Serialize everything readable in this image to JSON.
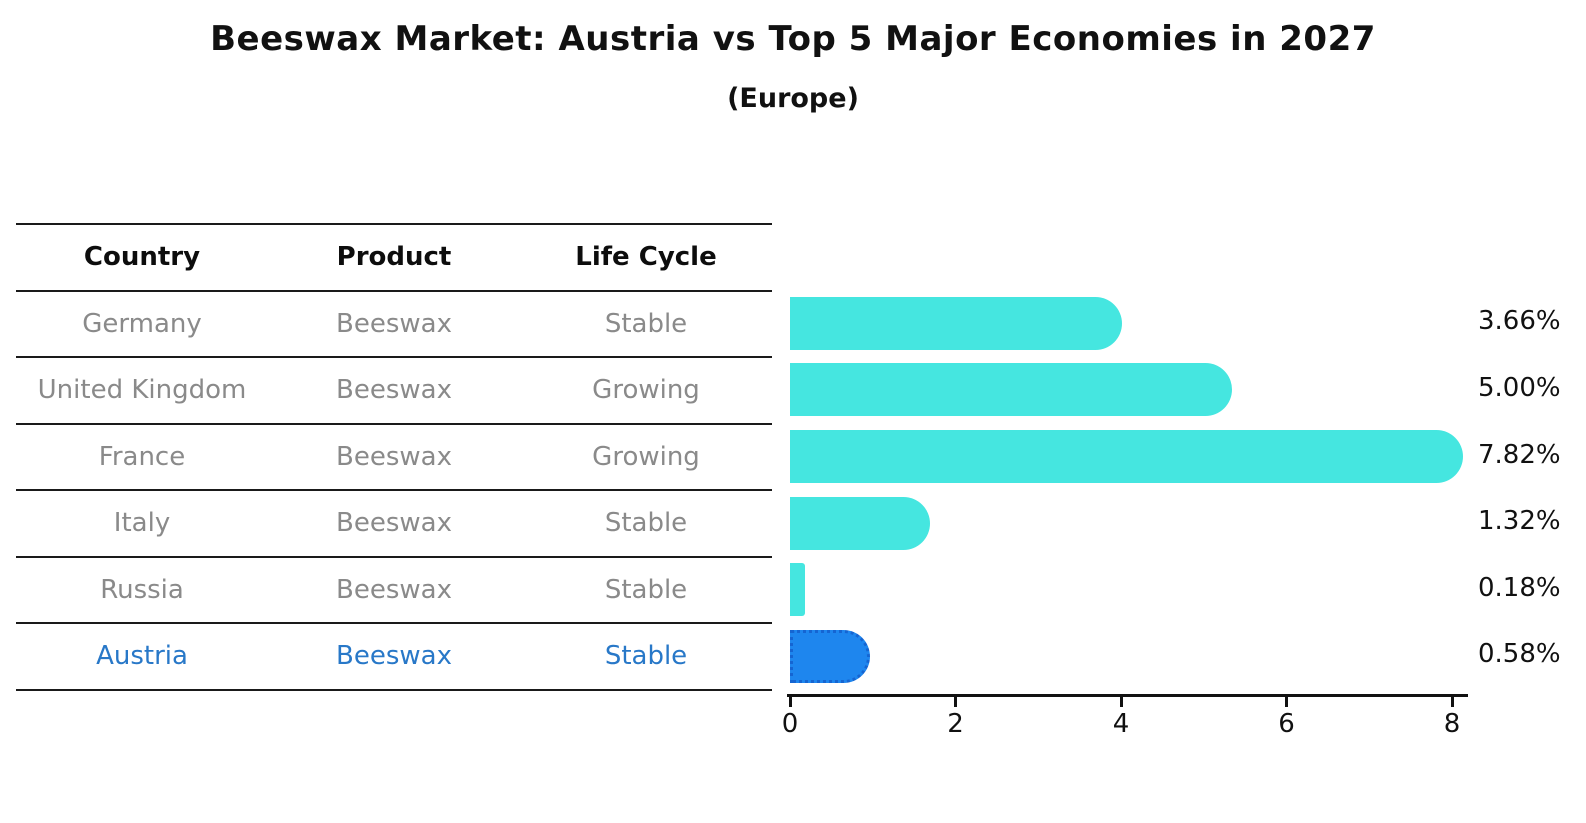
{
  "title": "Beeswax Market: Austria vs Top 5 Major Economies in 2027",
  "subtitle": "(Europe)",
  "table": {
    "headers": [
      "Country",
      "Product",
      "Life Cycle"
    ],
    "rows": [
      {
        "country": "Germany",
        "product": "Beeswax",
        "life_cycle": "Stable",
        "highlight": false
      },
      {
        "country": "United Kingdom",
        "product": "Beeswax",
        "life_cycle": "Growing",
        "highlight": false
      },
      {
        "country": "France",
        "product": "Beeswax",
        "life_cycle": "Growing",
        "highlight": false
      },
      {
        "country": "Italy",
        "product": "Beeswax",
        "life_cycle": "Stable",
        "highlight": false
      },
      {
        "country": "Russia",
        "product": "Beeswax",
        "life_cycle": "Stable",
        "highlight": false
      },
      {
        "country": "Austria",
        "product": "Beeswax",
        "life_cycle": "Stable",
        "highlight": true
      }
    ]
  },
  "chart_data": {
    "type": "bar",
    "orientation": "horizontal",
    "title": "Beeswax Market: Austria vs Top 5 Major Economies in 2027 (Europe)",
    "categories": [
      "Germany",
      "United Kingdom",
      "France",
      "Italy",
      "Russia",
      "Austria"
    ],
    "values": [
      3.66,
      5.0,
      7.82,
      1.32,
      0.18,
      0.58
    ],
    "value_labels": [
      "3.66%",
      "5.00%",
      "7.82%",
      "1.32%",
      "0.18%",
      "0.58%"
    ],
    "highlight_category": "Austria",
    "xlabel": "",
    "ylabel": "",
    "x_ticks": [
      "0",
      "2",
      "4",
      "6",
      "8"
    ],
    "xlim": [
      0,
      8.3
    ],
    "grid": false,
    "legend": "none",
    "colors": {
      "bar": "#45e6e0",
      "highlight_bar": "#1e86ee",
      "highlight_bar_edge": "#1565d2",
      "highlight_text": "#2878c8",
      "row_text": "#8a8a8a",
      "axis": "#111111"
    }
  }
}
